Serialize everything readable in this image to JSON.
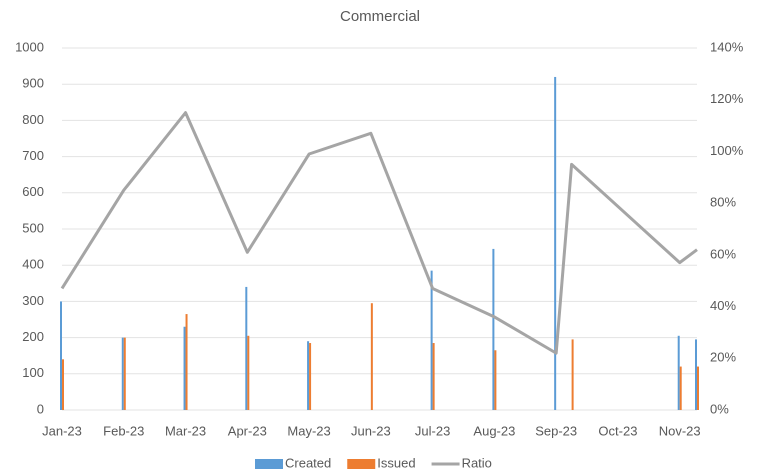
{
  "chart_data": {
    "type": "bar-line",
    "title": "Commercial",
    "x": [
      0,
      1,
      2,
      3,
      4,
      5,
      6,
      7,
      8,
      8.25,
      10,
      10.28
    ],
    "xlim": [
      0,
      10.28
    ],
    "xticks": [
      {
        "value": 0,
        "label": "Jan-23"
      },
      {
        "value": 1,
        "label": "Feb-23"
      },
      {
        "value": 2,
        "label": "Mar-23"
      },
      {
        "value": 3,
        "label": "Apr-23"
      },
      {
        "value": 4,
        "label": "May-23"
      },
      {
        "value": 5,
        "label": "Jun-23"
      },
      {
        "value": 6,
        "label": "Jul-23"
      },
      {
        "value": 7,
        "label": "Aug-23"
      },
      {
        "value": 8,
        "label": "Sep-23"
      },
      {
        "value": 9,
        "label": "Oct-23"
      },
      {
        "value": 10,
        "label": "Nov-23"
      }
    ],
    "ylim": [
      0,
      1000
    ],
    "yticks": [
      0,
      100,
      200,
      300,
      400,
      500,
      600,
      700,
      800,
      900,
      1000
    ],
    "y2lim": [
      0,
      140
    ],
    "y2ticks": [
      {
        "value": 0,
        "label": "0%"
      },
      {
        "value": 20,
        "label": "20%"
      },
      {
        "value": 40,
        "label": "40%"
      },
      {
        "value": 60,
        "label": "60%"
      },
      {
        "value": 80,
        "label": "80%"
      },
      {
        "value": 100,
        "label": "100%"
      },
      {
        "value": 120,
        "label": "120%"
      },
      {
        "value": 140,
        "label": "140%"
      }
    ],
    "grid": true,
    "legend": "bottom",
    "series": [
      {
        "name": "Created",
        "color": "#5b9bd5",
        "kind": "bar",
        "values": [
          300,
          200,
          230,
          340,
          190,
          0,
          385,
          445,
          920,
          0,
          205,
          195
        ]
      },
      {
        "name": "Issued",
        "color": "#ed7d31",
        "kind": "bar",
        "values": [
          140,
          200,
          265,
          205,
          185,
          295,
          185,
          165,
          0,
          195,
          120,
          120
        ]
      },
      {
        "name": "Ratio",
        "color": "#a5a5a5",
        "kind": "line",
        "axis": "y2",
        "values": [
          47,
          85,
          115,
          61,
          99,
          107,
          47,
          36,
          22,
          95,
          57,
          62
        ]
      }
    ]
  }
}
